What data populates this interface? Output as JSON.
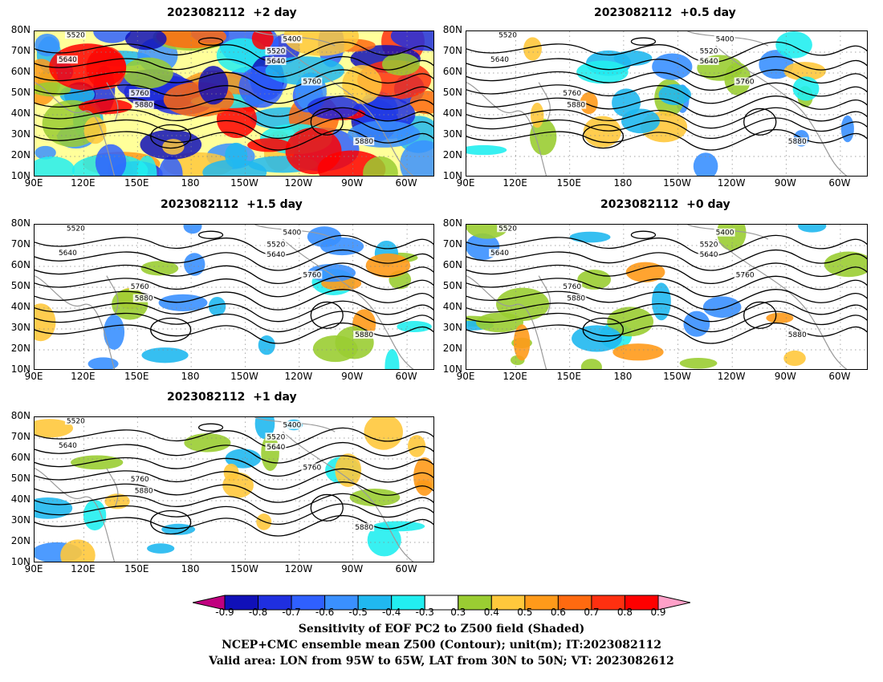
{
  "panels": [
    {
      "title": "2023082112  +2 day",
      "kind": "strong"
    },
    {
      "title": "2023082112  +0.5 day",
      "kind": "mid"
    },
    {
      "title": "2023082112  +1.5 day",
      "kind": "mid"
    },
    {
      "title": "2023082112  +0 day",
      "kind": "mid"
    },
    {
      "title": "2023082112  +1 day",
      "kind": "mid"
    }
  ],
  "lat_labels": [
    "80N",
    "70N",
    "60N",
    "50N",
    "40N",
    "30N",
    "20N",
    "10N"
  ],
  "lon_labels": [
    "90E",
    "120E",
    "150E",
    "180",
    "150W",
    "120W",
    "90W",
    "60W"
  ],
  "contour_labels": [
    "5400",
    "5520",
    "5640",
    "5760",
    "5880"
  ],
  "colorbar": {
    "ticks": [
      "-0.9",
      "-0.8",
      "-0.7",
      "-0.6",
      "-0.5",
      "-0.4",
      "-0.3",
      "0.3",
      "0.4",
      "0.5",
      "0.6",
      "0.7",
      "0.8",
      "0.9"
    ],
    "colors": [
      "#c0007f",
      "#1010b8",
      "#1f2fe0",
      "#2f60ff",
      "#3a90ff",
      "#20b8f0",
      "#22eef0",
      "#ffffff",
      "#9acd32",
      "#ffc83c",
      "#ff9a1a",
      "#ff6a10",
      "#ff3010",
      "#ff0000",
      "#ffa0c8"
    ]
  },
  "captions": [
    "Sensitivity of EOF PC2 to Z500 field (Shaded)",
    "NCEP+CMC ensemble mean Z500 (Contour); unit(m); IT:2023082112",
    "Valid area: LON from 95W to 65W, LAT from 30N to 50N; VT: 2023082612"
  ]
}
